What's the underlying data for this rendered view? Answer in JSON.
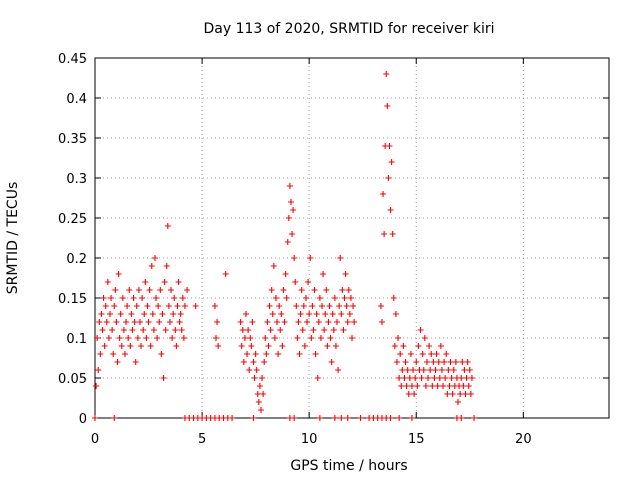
{
  "chart_data": {
    "type": "scatter",
    "title": "Day 113 of 2020, SRMTID for receiver kiri",
    "xlabel": "GPS time / hours",
    "ylabel": "SRMTID / TECUs",
    "xlim": [
      0,
      24
    ],
    "ylim": [
      0,
      0.45
    ],
    "xticks": [
      0,
      5,
      10,
      15,
      20
    ],
    "yticks": [
      0,
      0.05,
      0.1,
      0.15,
      0.2,
      0.25,
      0.3,
      0.35,
      0.4,
      0.45
    ],
    "grid": true,
    "marker": "plus",
    "color": "#ff0000",
    "series": [
      {
        "name": "SRMTID",
        "points": [
          [
            0.05,
            0.04
          ],
          [
            0.1,
            0.1
          ],
          [
            0.15,
            0.06
          ],
          [
            0.2,
            0.12
          ],
          [
            0.25,
            0.08
          ],
          [
            0.3,
            0.13
          ],
          [
            0.35,
            0.11
          ],
          [
            0.4,
            0.15
          ],
          [
            0.45,
            0.09
          ],
          [
            0.5,
            0.14
          ],
          [
            0.55,
            0.12
          ],
          [
            0.6,
            0.17
          ],
          [
            0.65,
            0.1
          ],
          [
            0.7,
            0.13
          ],
          [
            0.75,
            0.15
          ],
          [
            0.8,
            0.11
          ],
          [
            0.85,
            0.08
          ],
          [
            0.9,
            0.14
          ],
          [
            0.95,
            0.16
          ],
          [
            1.0,
            0.12
          ],
          [
            1.05,
            0.07
          ],
          [
            1.1,
            0.18
          ],
          [
            1.15,
            0.1
          ],
          [
            1.2,
            0.13
          ],
          [
            1.25,
            0.09
          ],
          [
            1.3,
            0.15
          ],
          [
            1.35,
            0.11
          ],
          [
            1.4,
            0.08
          ],
          [
            1.45,
            0.12
          ],
          [
            1.5,
            0.14
          ],
          [
            1.55,
            0.1
          ],
          [
            1.6,
            0.16
          ],
          [
            1.65,
            0.09
          ],
          [
            1.7,
            0.13
          ],
          [
            1.75,
            0.11
          ],
          [
            1.8,
            0.15
          ],
          [
            1.85,
            0.12
          ],
          [
            1.9,
            0.07
          ],
          [
            1.95,
            0.14
          ],
          [
            2.0,
            0.1
          ],
          [
            2.05,
            0.16
          ],
          [
            2.1,
            0.12
          ],
          [
            2.15,
            0.09
          ],
          [
            2.2,
            0.15
          ],
          [
            2.25,
            0.11
          ],
          [
            2.3,
            0.13
          ],
          [
            2.35,
            0.17
          ],
          [
            2.4,
            0.1
          ],
          [
            2.45,
            0.14
          ],
          [
            2.5,
            0.12
          ],
          [
            2.55,
            0.16
          ],
          [
            2.6,
            0.09
          ],
          [
            2.65,
            0.19
          ],
          [
            2.7,
            0.13
          ],
          [
            2.75,
            0.11
          ],
          [
            2.8,
            0.2
          ],
          [
            2.85,
            0.15
          ],
          [
            2.9,
            0.1
          ],
          [
            2.95,
            0.14
          ],
          [
            3.0,
            0.12
          ],
          [
            3.05,
            0.16
          ],
          [
            3.1,
            0.08
          ],
          [
            3.15,
            0.13
          ],
          [
            3.2,
            0.05
          ],
          [
            3.25,
            0.17
          ],
          [
            3.3,
            0.11
          ],
          [
            3.35,
            0.19
          ],
          [
            3.4,
            0.24
          ],
          [
            3.45,
            0.14
          ],
          [
            3.5,
            0.12
          ],
          [
            3.55,
            0.16
          ],
          [
            3.6,
            0.1
          ],
          [
            3.65,
            0.13
          ],
          [
            3.7,
            0.15
          ],
          [
            3.75,
            0.11
          ],
          [
            3.8,
            0.09
          ],
          [
            3.85,
            0.14
          ],
          [
            3.9,
            0.17
          ],
          [
            3.95,
            0.12
          ],
          [
            4.0,
            0.13
          ],
          [
            4.05,
            0.11
          ],
          [
            4.1,
            0.15
          ],
          [
            4.15,
            0.1
          ],
          [
            4.2,
            0.14
          ],
          [
            4.3,
            0.16
          ],
          [
            4.7,
            0.14
          ],
          [
            5.6,
            0.14
          ],
          [
            5.65,
            0.1
          ],
          [
            5.7,
            0.12
          ],
          [
            5.75,
            0.09
          ],
          [
            6.1,
            0.18
          ],
          [
            6.8,
            0.12
          ],
          [
            6.85,
            0.09
          ],
          [
            6.9,
            0.11
          ],
          [
            6.95,
            0.07
          ],
          [
            7.0,
            0.1
          ],
          [
            7.05,
            0.13
          ],
          [
            7.1,
            0.08
          ],
          [
            7.15,
            0.11
          ],
          [
            7.2,
            0.06
          ],
          [
            7.25,
            0.1
          ],
          [
            7.3,
            0.09
          ],
          [
            7.35,
            0.12
          ],
          [
            7.4,
            0.07
          ],
          [
            7.45,
            0.05
          ],
          [
            7.5,
            0.08
          ],
          [
            7.55,
            0.06
          ],
          [
            7.6,
            0.03
          ],
          [
            7.65,
            0.02
          ],
          [
            7.7,
            0.04
          ],
          [
            7.75,
            0.01
          ],
          [
            7.8,
            0.05
          ],
          [
            7.85,
            0.03
          ],
          [
            7.9,
            0.07
          ],
          [
            7.95,
            0.1
          ],
          [
            8.0,
            0.08
          ],
          [
            8.05,
            0.12
          ],
          [
            8.1,
            0.09
          ],
          [
            8.15,
            0.14
          ],
          [
            8.2,
            0.11
          ],
          [
            8.25,
            0.16
          ],
          [
            8.3,
            0.13
          ],
          [
            8.35,
            0.19
          ],
          [
            8.4,
            0.1
          ],
          [
            8.45,
            0.15
          ],
          [
            8.5,
            0.12
          ],
          [
            8.55,
            0.08
          ],
          [
            8.6,
            0.14
          ],
          [
            8.65,
            0.11
          ],
          [
            8.7,
            0.13
          ],
          [
            8.75,
            0.09
          ],
          [
            8.8,
            0.16
          ],
          [
            8.85,
            0.12
          ],
          [
            8.9,
            0.18
          ],
          [
            8.95,
            0.15
          ],
          [
            9.0,
            0.22
          ],
          [
            9.05,
            0.25
          ],
          [
            9.1,
            0.29
          ],
          [
            9.15,
            0.27
          ],
          [
            9.2,
            0.23
          ],
          [
            9.25,
            0.26
          ],
          [
            9.3,
            0.2
          ],
          [
            9.35,
            0.17
          ],
          [
            9.4,
            0.14
          ],
          [
            9.45,
            0.1
          ],
          [
            9.5,
            0.12
          ],
          [
            9.55,
            0.08
          ],
          [
            9.6,
            0.13
          ],
          [
            9.65,
            0.16
          ],
          [
            9.7,
            0.11
          ],
          [
            9.75,
            0.14
          ],
          [
            9.8,
            0.09
          ],
          [
            9.85,
            0.15
          ],
          [
            9.9,
            0.12
          ],
          [
            9.95,
            0.17
          ],
          [
            10.0,
            0.13
          ],
          [
            10.05,
            0.2
          ],
          [
            10.1,
            0.1
          ],
          [
            10.15,
            0.14
          ],
          [
            10.2,
            0.11
          ],
          [
            10.25,
            0.16
          ],
          [
            10.3,
            0.08
          ],
          [
            10.35,
            0.13
          ],
          [
            10.4,
            0.05
          ],
          [
            10.45,
            0.12
          ],
          [
            10.5,
            0.15
          ],
          [
            10.55,
            0.1
          ],
          [
            10.6,
            0.14
          ],
          [
            10.65,
            0.18
          ],
          [
            10.7,
            0.11
          ],
          [
            10.75,
            0.13
          ],
          [
            10.8,
            0.16
          ],
          [
            10.85,
            0.09
          ],
          [
            10.9,
            0.12
          ],
          [
            10.95,
            0.14
          ],
          [
            11.0,
            0.1
          ],
          [
            11.05,
            0.07
          ],
          [
            11.1,
            0.13
          ],
          [
            11.15,
            0.11
          ],
          [
            11.2,
            0.15
          ],
          [
            11.25,
            0.09
          ],
          [
            11.3,
            0.12
          ],
          [
            11.35,
            0.06
          ],
          [
            11.4,
            0.14
          ],
          [
            11.45,
            0.2
          ],
          [
            11.5,
            0.13
          ],
          [
            11.55,
            0.16
          ],
          [
            11.6,
            0.11
          ],
          [
            11.65,
            0.15
          ],
          [
            11.7,
            0.18
          ],
          [
            11.75,
            0.14
          ],
          [
            11.8,
            0.12
          ],
          [
            11.85,
            0.16
          ],
          [
            11.9,
            0.13
          ],
          [
            11.95,
            0.15
          ],
          [
            12.0,
            0.1
          ],
          [
            12.05,
            0.14
          ],
          [
            12.1,
            0.12
          ],
          [
            13.35,
            0.14
          ],
          [
            13.4,
            0.12
          ],
          [
            13.45,
            0.28
          ],
          [
            13.5,
            0.23
          ],
          [
            13.55,
            0.34
          ],
          [
            13.6,
            0.43
          ],
          [
            13.65,
            0.39
          ],
          [
            13.7,
            0.3
          ],
          [
            13.75,
            0.34
          ],
          [
            13.8,
            0.26
          ],
          [
            13.85,
            0.32
          ],
          [
            13.9,
            0.23
          ],
          [
            13.95,
            0.15
          ],
          [
            14.0,
            0.09
          ],
          [
            14.05,
            0.13
          ],
          [
            14.1,
            0.07
          ],
          [
            14.15,
            0.1
          ],
          [
            14.2,
            0.05
          ],
          [
            14.25,
            0.08
          ],
          [
            14.3,
            0.04
          ],
          [
            14.35,
            0.06
          ],
          [
            14.4,
            0.09
          ],
          [
            14.45,
            0.05
          ],
          [
            14.5,
            0.07
          ],
          [
            14.55,
            0.04
          ],
          [
            14.6,
            0.06
          ],
          [
            14.65,
            0.03
          ],
          [
            14.7,
            0.05
          ],
          [
            14.75,
            0.08
          ],
          [
            14.8,
            0.04
          ],
          [
            14.85,
            0.06
          ],
          [
            14.9,
            0.03
          ],
          [
            14.95,
            0.05
          ],
          [
            15.0,
            0.07
          ],
          [
            15.05,
            0.04
          ],
          [
            15.1,
            0.09
          ],
          [
            15.15,
            0.06
          ],
          [
            15.2,
            0.11
          ],
          [
            15.25,
            0.05
          ],
          [
            15.3,
            0.08
          ],
          [
            15.35,
            0.06
          ],
          [
            15.4,
            0.1
          ],
          [
            15.45,
            0.04
          ],
          [
            15.5,
            0.07
          ],
          [
            15.55,
            0.05
          ],
          [
            15.6,
            0.09
          ],
          [
            15.65,
            0.06
          ],
          [
            15.7,
            0.08
          ],
          [
            15.75,
            0.04
          ],
          [
            15.8,
            0.07
          ],
          [
            15.85,
            0.05
          ],
          [
            15.9,
            0.06
          ],
          [
            15.95,
            0.08
          ],
          [
            16.0,
            0.04
          ],
          [
            16.05,
            0.07
          ],
          [
            16.1,
            0.05
          ],
          [
            16.15,
            0.09
          ],
          [
            16.2,
            0.06
          ],
          [
            16.25,
            0.04
          ],
          [
            16.3,
            0.07
          ],
          [
            16.35,
            0.05
          ],
          [
            16.4,
            0.08
          ],
          [
            16.45,
            0.03
          ],
          [
            16.5,
            0.06
          ],
          [
            16.55,
            0.04
          ],
          [
            16.6,
            0.07
          ],
          [
            16.65,
            0.05
          ],
          [
            16.7,
            0.03
          ],
          [
            16.75,
            0.06
          ],
          [
            16.8,
            0.04
          ],
          [
            16.85,
            0.07
          ],
          [
            16.9,
            0.05
          ],
          [
            16.95,
            0.02
          ],
          [
            17.0,
            0.04
          ],
          [
            17.05,
            0.03
          ],
          [
            17.1,
            0.05
          ],
          [
            17.15,
            0.07
          ],
          [
            17.2,
            0.04
          ],
          [
            17.25,
            0.06
          ],
          [
            17.3,
            0.03
          ],
          [
            17.35,
            0.05
          ],
          [
            17.4,
            0.07
          ],
          [
            17.45,
            0.04
          ],
          [
            17.5,
            0.06
          ],
          [
            17.55,
            0.03
          ],
          [
            17.6,
            0.05
          ],
          [
            0.0,
            0.0
          ],
          [
            0.9,
            0.0
          ],
          [
            4.2,
            0.0
          ],
          [
            4.4,
            0.0
          ],
          [
            4.6,
            0.0
          ],
          [
            4.8,
            0.0
          ],
          [
            5.0,
            0.0
          ],
          [
            5.2,
            0.0
          ],
          [
            5.4,
            0.0
          ],
          [
            5.6,
            0.0
          ],
          [
            5.8,
            0.0
          ],
          [
            6.0,
            0.0
          ],
          [
            6.2,
            0.0
          ],
          [
            6.4,
            0.0
          ],
          [
            7.4,
            0.0
          ],
          [
            9.1,
            0.0
          ],
          [
            9.3,
            0.0
          ],
          [
            10.5,
            0.0
          ],
          [
            11.2,
            0.0
          ],
          [
            11.5,
            0.0
          ],
          [
            11.8,
            0.0
          ],
          [
            12.4,
            0.0
          ],
          [
            12.8,
            0.0
          ],
          [
            13.0,
            0.0
          ],
          [
            13.2,
            0.0
          ],
          [
            13.4,
            0.0
          ],
          [
            13.6,
            0.0
          ],
          [
            13.8,
            0.0
          ],
          [
            14.2,
            0.0
          ],
          [
            14.8,
            0.0
          ],
          [
            16.9,
            0.0
          ],
          [
            17.1,
            0.0
          ],
          [
            17.7,
            0.0
          ]
        ]
      }
    ]
  }
}
